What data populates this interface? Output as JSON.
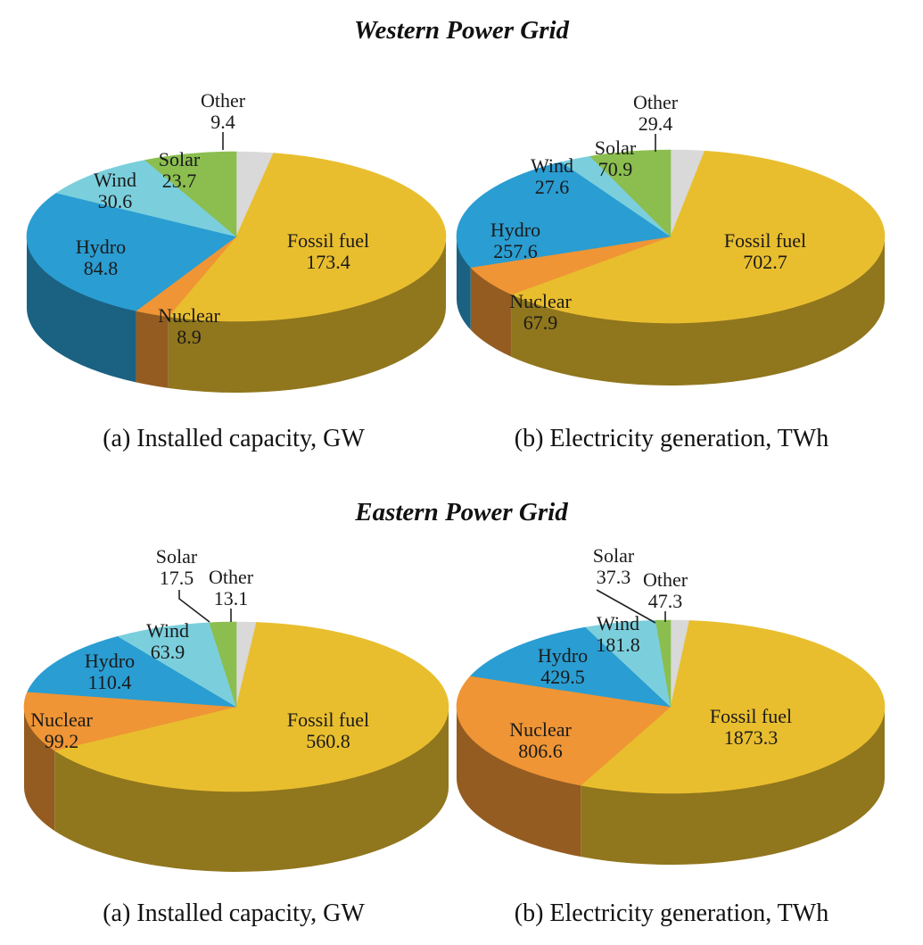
{
  "colors": {
    "Fossil fuel": "#E9BE2E",
    "Nuclear": "#EF9535",
    "Hydro": "#2A9DD2",
    "Wind": "#7BCFDD",
    "Solar": "#8BBE4F",
    "Other": "#D9D9D9"
  },
  "chart_data": [
    {
      "type": "pie",
      "group": "Western Power Grid",
      "caption": "(a) Installed capacity, GW",
      "categories": [
        "Other",
        "Fossil fuel",
        "Nuclear",
        "Hydro",
        "Wind",
        "Solar"
      ],
      "values": [
        9.4,
        173.4,
        8.9,
        84.8,
        30.6,
        23.7
      ]
    },
    {
      "type": "pie",
      "group": "Western Power Grid",
      "caption": "(b) Electricity generation, TWh",
      "categories": [
        "Other",
        "Fossil fuel",
        "Nuclear",
        "Hydro",
        "Wind",
        "Solar"
      ],
      "values": [
        29.4,
        702.7,
        67.9,
        257.6,
        27.6,
        70.9
      ]
    },
    {
      "type": "pie",
      "group": "Eastern Power Grid",
      "caption": "(a) Installed capacity, GW",
      "categories": [
        "Other",
        "Fossil fuel",
        "Nuclear",
        "Hydro",
        "Wind",
        "Solar"
      ],
      "values": [
        13.1,
        560.8,
        99.2,
        110.4,
        63.9,
        17.5
      ]
    },
    {
      "type": "pie",
      "group": "Eastern Power Grid",
      "caption": "(b) Electricity generation, TWh",
      "categories": [
        "Other",
        "Fossil fuel",
        "Nuclear",
        "Hydro",
        "Wind",
        "Solar"
      ],
      "values": [
        47.3,
        1873.3,
        806.6,
        429.5,
        181.8,
        37.3
      ]
    }
  ],
  "titles": {
    "west": "Western Power Grid",
    "east": "Eastern Power Grid"
  }
}
